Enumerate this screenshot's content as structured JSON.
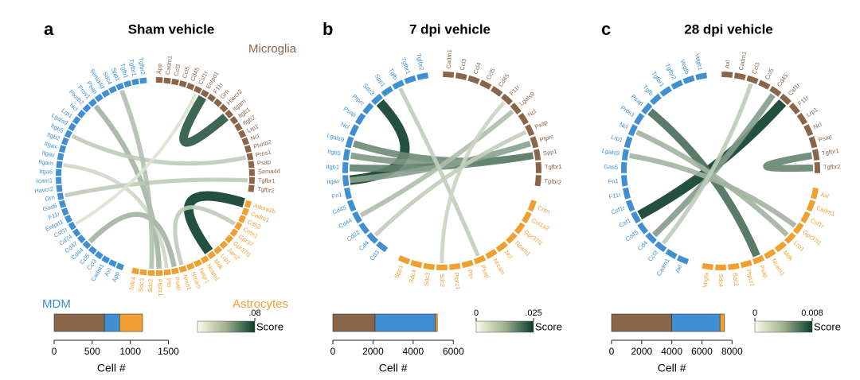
{
  "groups": [
    {
      "name": "Microglia",
      "color": "#8b6548"
    },
    {
      "name": "Astrocytes",
      "color": "#f0a030"
    },
    {
      "name": "MDM",
      "color": "#3f8fd2"
    }
  ],
  "chart_data": [
    {
      "type": "chord",
      "letter": "a",
      "title": "Sham vehicle",
      "genes": [
        [
          "App",
          "Cadm1",
          "Ccl3",
          "Ccl5",
          "Cd45",
          "Csf1r",
          "Entpd1",
          "F11r",
          "Grn",
          "Havcr2",
          "Itgam",
          "Itgb1",
          "Itgb2",
          "Lrp1",
          "Ncl",
          "Plxnb2",
          "Pros1",
          "Psap",
          "Sema4d",
          "Tgfbr1",
          "Tgfbr2"
        ],
        [
          "Adora2b",
          "Cadm1",
          "Cdh2",
          "Cntn1",
          "Gpr37",
          "Gpr37l1",
          "Jam2",
          "Lrp1",
          "Mdk",
          "Ncam1",
          "Negr1",
          "Nrcam",
          "Nrxn1",
          "Psap",
          "Ptn",
          "Ptprz1",
          "Sdc2",
          "Sdc3",
          "Sdc4"
        ],
        [
          "App",
          "Axl",
          "Cadm1",
          "Ccl3",
          "Ccl5",
          "Cd44",
          "Cd47",
          "Cd74",
          "Csf1r",
          "Entpd1",
          "F11r",
          "Gas6",
          "Grn",
          "Havcr2",
          "Icam1",
          "Itga6",
          "Itgam",
          "Itgav",
          "Itgax",
          "Itgb2",
          "Itgb5",
          "Lgals9",
          "Lrp1",
          "Ncl",
          "Plxnb2",
          "Pros1",
          "Psap",
          "Sema4d",
          "Sdc4",
          "Spp1",
          "Tgfb1",
          "Tgfbr1",
          "Tgfbr2"
        ]
      ],
      "links": [
        {
          "from": [
            0,
            6
          ],
          "to": [
            0,
            10
          ],
          "score": 0.07
        },
        {
          "from": [
            1,
            0
          ],
          "to": [
            1,
            8
          ],
          "score": 0.08
        },
        {
          "from": [
            2,
            25
          ],
          "to": [
            1,
            15
          ],
          "score": 0.03
        },
        {
          "from": [
            2,
            20
          ],
          "to": [
            0,
            16
          ],
          "score": 0.02
        },
        {
          "from": [
            2,
            16
          ],
          "to": [
            1,
            14
          ],
          "score": 0.015
        },
        {
          "from": [
            2,
            12
          ],
          "to": [
            0,
            19
          ],
          "score": 0.02
        },
        {
          "from": [
            2,
            5
          ],
          "to": [
            1,
            13
          ],
          "score": 0.03
        },
        {
          "from": [
            2,
            29
          ],
          "to": [
            1,
            16
          ],
          "score": 0.025
        },
        {
          "from": [
            1,
            3
          ],
          "to": [
            1,
            12
          ],
          "score": 0.02
        },
        {
          "from": [
            2,
            8
          ],
          "to": [
            0,
            5
          ],
          "score": 0.01
        }
      ],
      "cell_counts": {
        "values": [
          660,
          200,
          300
        ],
        "xlim": [
          0,
          1500
        ],
        "xticks": [
          0,
          500,
          1000,
          1500
        ],
        "xlabel": "Cell #"
      },
      "score": {
        "label": "Score",
        "range": [
          0,
          0.08
        ],
        "ticks": [
          {
            "value": 0.08,
            "label": ".08"
          }
        ]
      }
    },
    {
      "type": "chord",
      "letter": "b",
      "title": "7 dpi vehicle",
      "genes": [
        [
          "Cadm1",
          "Ccl3",
          "Ccl4",
          "Ccl5",
          "Cd45",
          "F11r",
          "Lgals9",
          "Ncl",
          "Psap",
          "Ptprc",
          "Spp1",
          "Tgfbr1",
          "Tgfbr2"
        ],
        [
          "Cntn",
          "Col1a2",
          "Gpr37l1",
          "Ncam1",
          "Ncl",
          "Nrcam",
          "Psap",
          "Ptn",
          "Ptprz1",
          "Sdc2",
          "Sdc3",
          "Sdc4",
          "Spp1"
        ],
        [
          "Cd3",
          "Cd4",
          "Cd22",
          "Cd44",
          "Cd45",
          "Fn1",
          "Itgav",
          "Itgb1",
          "Itgb5",
          "Lgals9",
          "Ncl",
          "Psap",
          "Ptprc",
          "Sdc3",
          "Spp1",
          "Tgfb",
          "Tgfbr1",
          "Tgfbr2"
        ]
      ],
      "links": [
        {
          "from": [
            2,
            13
          ],
          "to": [
            2,
            6
          ],
          "score": 0.025
        },
        {
          "from": [
            2,
            9
          ],
          "to": [
            0,
            10
          ],
          "score": 0.015
        },
        {
          "from": [
            2,
            8
          ],
          "to": [
            0,
            10
          ],
          "score": 0.013
        },
        {
          "from": [
            2,
            7
          ],
          "to": [
            0,
            10
          ],
          "score": 0.016
        },
        {
          "from": [
            2,
            6
          ],
          "to": [
            0,
            9
          ],
          "score": 0.012
        },
        {
          "from": [
            2,
            3
          ],
          "to": [
            0,
            6
          ],
          "score": 0.008
        },
        {
          "from": [
            2,
            15
          ],
          "to": [
            1,
            6
          ],
          "score": 0.006
        },
        {
          "from": [
            0,
            5
          ],
          "to": [
            1,
            9
          ],
          "score": 0.005
        },
        {
          "from": [
            2,
            1
          ],
          "to": [
            0,
            8
          ],
          "score": 0.006
        }
      ],
      "cell_counts": {
        "values": [
          2100,
          3000,
          100
        ],
        "xlim": [
          0,
          6000
        ],
        "xticks": [
          0,
          2000,
          4000,
          6000
        ],
        "xlabel": "Cell #"
      },
      "score": {
        "label": "Score",
        "range": [
          0,
          0.025
        ],
        "ticks": [
          0,
          {
            "value": 0.025,
            "label": ".025"
          }
        ]
      }
    },
    {
      "type": "chord",
      "letter": "c",
      "title": "28 dpi vehicle",
      "genes": [
        [
          "Axl",
          "Cadm1",
          "Ccl3",
          "Ccl5",
          "Cd45",
          "Csf1r",
          "F11r",
          "Lrp1",
          "Ncl",
          "Psap",
          "Tgfbr1",
          "Tgfbr2"
        ],
        [
          "Axl",
          "Cadm1",
          "Csf1r",
          "Gpr37l1",
          "Lrp1",
          "Mdk",
          "Ncam1",
          "Psap",
          "Ptprz1",
          "Sdc2",
          "Sdc4",
          "Vegfa"
        ],
        [
          "Axl",
          "Cadm1",
          "Ccl3",
          "Cd4",
          "Cd45",
          "Csf1",
          "Csf1r",
          "F11r",
          "Fn1",
          "Gas6",
          "Lgals9",
          "Lrp1",
          "Ncl",
          "Pros1",
          "Psap",
          "Tgfb",
          "Tgfbr1",
          "Tgfbr2",
          "Vegfb",
          "Vegfr1"
        ]
      ],
      "links": [
        {
          "from": [
            2,
            5
          ],
          "to": [
            0,
            5
          ],
          "score": 0.008
        },
        {
          "from": [
            2,
            14
          ],
          "to": [
            1,
            7
          ],
          "score": 0.006
        },
        {
          "from": [
            0,
            10
          ],
          "to": [
            0,
            11
          ],
          "score": 0.005
        },
        {
          "from": [
            2,
            3
          ],
          "to": [
            0,
            4
          ],
          "score": 0.004
        },
        {
          "from": [
            2,
            10
          ],
          "to": [
            1,
            3
          ],
          "score": 0.003
        },
        {
          "from": [
            2,
            12
          ],
          "to": [
            1,
            4
          ],
          "score": 0.003
        },
        {
          "from": [
            2,
            2
          ],
          "to": [
            0,
            2
          ],
          "score": 0.002
        }
      ],
      "cell_counts": {
        "values": [
          4000,
          3200,
          300
        ],
        "xlim": [
          0,
          8000
        ],
        "xticks": [
          0,
          2000,
          4000,
          6000,
          8000
        ],
        "xlabel": "Cell #"
      },
      "score": {
        "label": "Score",
        "range": [
          0,
          0.008
        ],
        "ticks": [
          0,
          0.008
        ]
      }
    }
  ]
}
